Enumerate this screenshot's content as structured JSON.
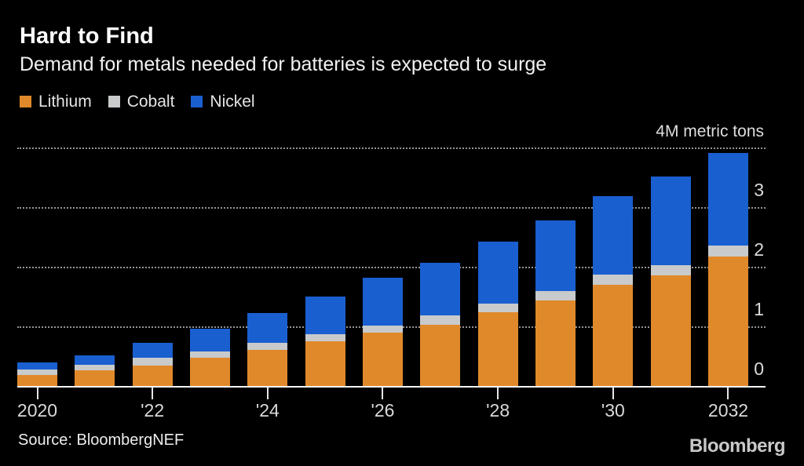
{
  "header": {
    "title": "Hard to Find",
    "subtitle": "Demand for metals needed for batteries is expected to surge"
  },
  "legend": {
    "items": [
      {
        "label": "Lithium",
        "color": "#E0892B"
      },
      {
        "label": "Cobalt",
        "color": "#C8CACB"
      },
      {
        "label": "Nickel",
        "color": "#1A5FD0"
      }
    ]
  },
  "footer": {
    "source": "Source: BloombergNEF",
    "logo": "Bloomberg"
  },
  "colors": {
    "background": "#000000",
    "title_text": "#FFFFFF",
    "axis_text": "#D9D9D9",
    "gridline": "#949494",
    "baseline": "#F5F5F5",
    "lithium": "#E0892B",
    "cobalt": "#C8CACB",
    "nickel": "#1A5FD0"
  },
  "chart_data": {
    "type": "bar",
    "stacked": true,
    "title": "Hard to Find",
    "subtitle": "Demand for metals needed for batteries is expected to surge",
    "xlabel": "",
    "ylabel": "metric tons (millions)",
    "unit_label": "4M metric tons",
    "ylim": [
      0,
      4
    ],
    "grid": "dotted horizontal gridlines at 1, 2, 3, 4; solid baseline at 0",
    "legend_position": "top-left",
    "categories": [
      2020,
      2021,
      2022,
      2023,
      2024,
      2025,
      2026,
      2027,
      2028,
      2029,
      2030,
      2031,
      2032
    ],
    "series": [
      {
        "name": "Lithium",
        "color": "#E0892B",
        "values": [
          0.18,
          0.26,
          0.34,
          0.48,
          0.61,
          0.75,
          0.9,
          1.03,
          1.24,
          1.43,
          1.7,
          1.86,
          2.17
        ]
      },
      {
        "name": "Cobalt",
        "color": "#C8CACB",
        "values": [
          0.1,
          0.1,
          0.13,
          0.1,
          0.11,
          0.12,
          0.11,
          0.15,
          0.14,
          0.16,
          0.17,
          0.16,
          0.18
        ]
      },
      {
        "name": "Nickel",
        "color": "#1A5FD0",
        "values": [
          0.11,
          0.16,
          0.26,
          0.38,
          0.51,
          0.63,
          0.81,
          0.89,
          1.04,
          1.19,
          1.31,
          1.49,
          1.56
        ]
      }
    ],
    "y_axis": {
      "gridline_values": [
        1,
        2,
        3,
        4
      ],
      "labels": [
        {
          "value": 4,
          "text": "4M metric tons"
        },
        {
          "value": 3,
          "text": "3"
        },
        {
          "value": 2,
          "text": "2"
        },
        {
          "value": 1,
          "text": "1"
        },
        {
          "value": 0,
          "text": "0"
        }
      ]
    },
    "x_axis": {
      "ticks": [
        {
          "slot": 0,
          "label": "2020"
        },
        {
          "slot": 2,
          "label": "'22"
        },
        {
          "slot": 4,
          "label": "'24"
        },
        {
          "slot": 6,
          "label": "'26"
        },
        {
          "slot": 8,
          "label": "'28"
        },
        {
          "slot": 10,
          "label": "'30"
        },
        {
          "slot": 12,
          "label": "2032"
        }
      ]
    }
  }
}
